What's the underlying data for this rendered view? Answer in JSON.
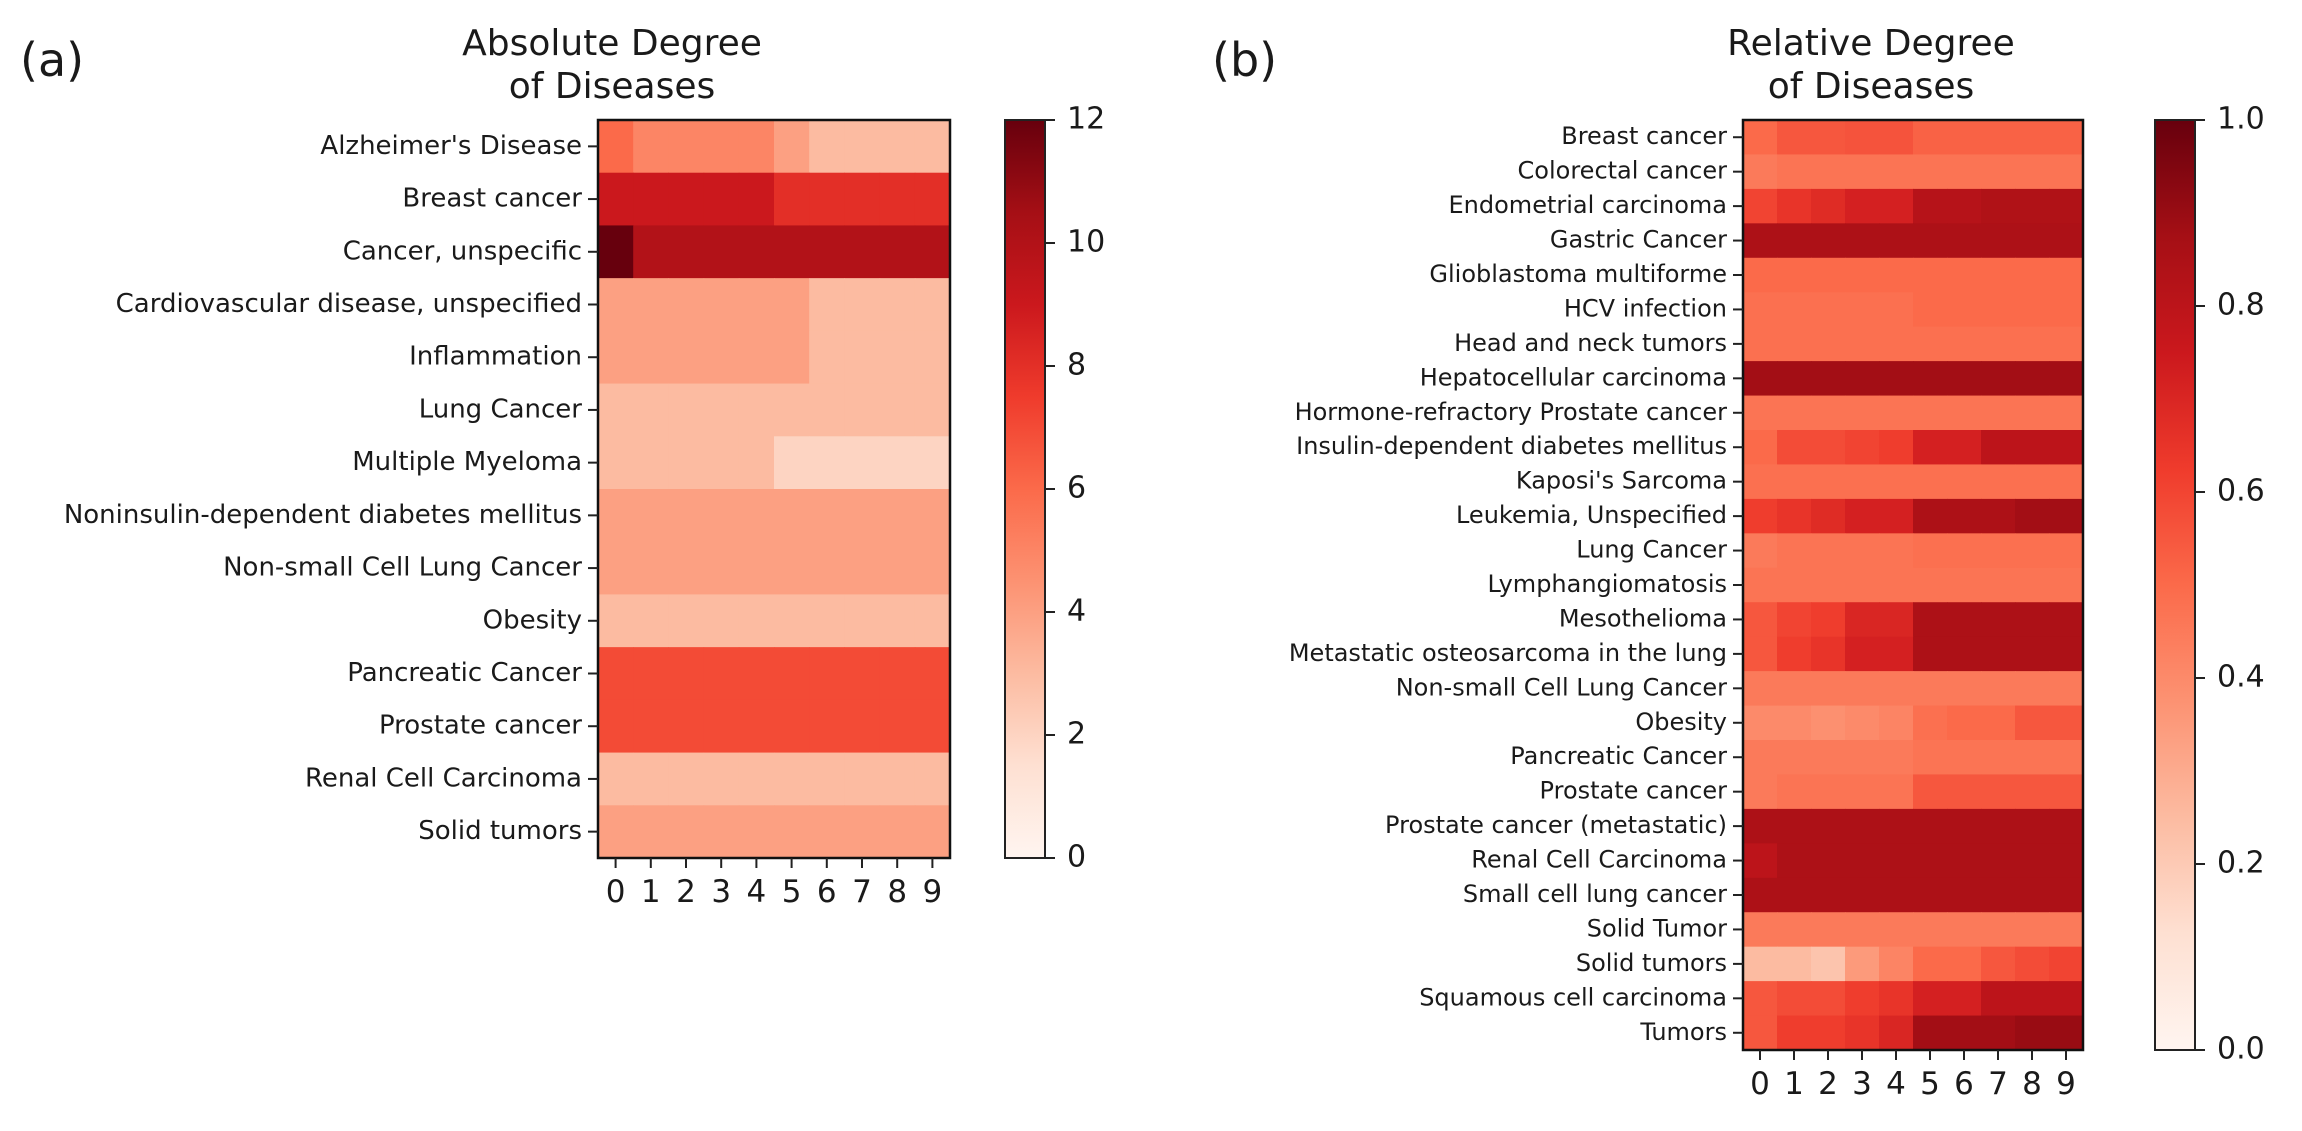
{
  "chart_data": [
    {
      "type": "heatmap",
      "panel_label": "(a)",
      "title_lines": [
        "Absolute Degree",
        "of Diseases"
      ],
      "columns": [
        "0",
        "1",
        "2",
        "3",
        "4",
        "5",
        "6",
        "7",
        "8",
        "9"
      ],
      "rows": [
        "Alzheimer's Disease",
        "Breast cancer",
        "Cancer, unspecific",
        "Cardiovascular disease, unspecified",
        "Inflammation",
        "Lung Cancer",
        "Multiple Myeloma",
        "Noninsulin-dependent diabetes mellitus",
        "Non-small Cell Lung Cancer",
        "Obesity",
        "Pancreatic Cancer",
        "Prostate cancer",
        "Renal Cell Carcinoma",
        "Solid tumors"
      ],
      "values": [
        [
          6,
          5,
          5,
          5,
          5,
          4,
          3,
          3,
          3,
          3
        ],
        [
          9,
          9,
          9,
          9,
          9,
          8,
          8,
          8,
          8,
          8
        ],
        [
          12,
          10,
          10,
          10,
          10,
          10,
          10,
          10,
          10,
          10
        ],
        [
          4,
          4,
          4,
          4,
          4,
          4,
          3,
          3,
          3,
          3
        ],
        [
          4,
          4,
          4,
          4,
          4,
          4,
          3,
          3,
          3,
          3
        ],
        [
          3,
          3,
          3,
          3,
          3,
          3,
          3,
          3,
          3,
          3
        ],
        [
          3,
          3,
          3,
          3,
          3,
          2,
          2,
          2,
          2,
          2
        ],
        [
          4,
          4,
          4,
          4,
          4,
          4,
          4,
          4,
          4,
          4
        ],
        [
          4,
          4,
          4,
          4,
          4,
          4,
          4,
          4,
          4,
          4
        ],
        [
          3,
          3,
          3,
          3,
          3,
          3,
          3,
          3,
          3,
          3
        ],
        [
          7,
          7,
          7,
          7,
          7,
          7,
          7,
          7,
          7,
          7
        ],
        [
          7,
          7,
          7,
          7,
          7,
          7,
          7,
          7,
          7,
          7
        ],
        [
          3,
          3,
          3,
          3,
          3,
          3,
          3,
          3,
          3,
          3
        ],
        [
          4,
          4,
          4,
          4,
          4,
          4,
          4,
          4,
          4,
          4
        ]
      ],
      "vmin": 0,
      "vmax": 12,
      "colorbar_ticks": [
        "0",
        "2",
        "4",
        "6",
        "8",
        "10",
        "12"
      ],
      "colormap": "Reds"
    },
    {
      "type": "heatmap",
      "panel_label": "(b)",
      "title_lines": [
        "Relative Degree",
        "of Diseases"
      ],
      "columns": [
        "0",
        "1",
        "2",
        "3",
        "4",
        "5",
        "6",
        "7",
        "8",
        "9"
      ],
      "rows": [
        "Breast cancer",
        "Colorectal cancer",
        "Endometrial carcinoma",
        "Gastric Cancer",
        "Glioblastoma multiforme",
        "HCV infection",
        "Head and neck tumors",
        "Hepatocellular carcinoma",
        "Hormone-refractory Prostate cancer",
        "Insulin-dependent diabetes mellitus",
        "Kaposi's Sarcoma",
        "Leukemia, Unspecified",
        "Lung Cancer",
        "Lymphangiomatosis",
        "Mesothelioma",
        "Metastatic osteosarcoma in the lung",
        "Non-small Cell Lung Cancer",
        "Obesity",
        "Pancreatic Cancer",
        "Prostate cancer",
        "Prostate cancer (metastatic)",
        "Renal Cell Carcinoma",
        "Small cell lung cancer",
        "Solid Tumor",
        "Solid tumors",
        "Squamous cell carcinoma",
        "Tumors"
      ],
      "values": [
        [
          0.5,
          0.55,
          0.55,
          0.56,
          0.56,
          0.52,
          0.52,
          0.52,
          0.52,
          0.52
        ],
        [
          0.45,
          0.47,
          0.47,
          0.47,
          0.47,
          0.47,
          0.47,
          0.47,
          0.47,
          0.47
        ],
        [
          0.6,
          0.65,
          0.68,
          0.72,
          0.72,
          0.82,
          0.82,
          0.84,
          0.84,
          0.84
        ],
        [
          0.85,
          0.85,
          0.85,
          0.85,
          0.85,
          0.85,
          0.85,
          0.85,
          0.85,
          0.85
        ],
        [
          0.5,
          0.5,
          0.5,
          0.5,
          0.5,
          0.5,
          0.5,
          0.5,
          0.5,
          0.5
        ],
        [
          0.48,
          0.48,
          0.48,
          0.48,
          0.48,
          0.5,
          0.5,
          0.5,
          0.5,
          0.5
        ],
        [
          0.48,
          0.48,
          0.48,
          0.48,
          0.48,
          0.48,
          0.48,
          0.48,
          0.48,
          0.48
        ],
        [
          0.88,
          0.88,
          0.88,
          0.88,
          0.88,
          0.88,
          0.88,
          0.88,
          0.88,
          0.88
        ],
        [
          0.47,
          0.47,
          0.47,
          0.47,
          0.47,
          0.47,
          0.47,
          0.47,
          0.47,
          0.47
        ],
        [
          0.5,
          0.58,
          0.58,
          0.6,
          0.62,
          0.72,
          0.72,
          0.8,
          0.8,
          0.8
        ],
        [
          0.48,
          0.48,
          0.48,
          0.48,
          0.48,
          0.48,
          0.48,
          0.48,
          0.48,
          0.48
        ],
        [
          0.62,
          0.65,
          0.68,
          0.72,
          0.72,
          0.85,
          0.85,
          0.85,
          0.88,
          0.88
        ],
        [
          0.45,
          0.47,
          0.47,
          0.47,
          0.47,
          0.48,
          0.48,
          0.48,
          0.48,
          0.48
        ],
        [
          0.47,
          0.47,
          0.47,
          0.47,
          0.47,
          0.47,
          0.47,
          0.47,
          0.47,
          0.47
        ],
        [
          0.55,
          0.6,
          0.62,
          0.7,
          0.7,
          0.85,
          0.85,
          0.85,
          0.85,
          0.85
        ],
        [
          0.55,
          0.62,
          0.65,
          0.72,
          0.72,
          0.85,
          0.85,
          0.85,
          0.85,
          0.85
        ],
        [
          0.45,
          0.45,
          0.45,
          0.45,
          0.45,
          0.45,
          0.45,
          0.45,
          0.45,
          0.45
        ],
        [
          0.4,
          0.4,
          0.38,
          0.4,
          0.42,
          0.48,
          0.5,
          0.5,
          0.55,
          0.55
        ],
        [
          0.45,
          0.45,
          0.45,
          0.45,
          0.45,
          0.47,
          0.47,
          0.47,
          0.47,
          0.47
        ],
        [
          0.45,
          0.47,
          0.47,
          0.47,
          0.47,
          0.55,
          0.55,
          0.55,
          0.55,
          0.55
        ],
        [
          0.85,
          0.85,
          0.85,
          0.85,
          0.85,
          0.85,
          0.85,
          0.85,
          0.85,
          0.85
        ],
        [
          0.8,
          0.85,
          0.85,
          0.85,
          0.85,
          0.85,
          0.85,
          0.85,
          0.85,
          0.85
        ],
        [
          0.85,
          0.85,
          0.85,
          0.85,
          0.85,
          0.85,
          0.85,
          0.85,
          0.85,
          0.85
        ],
        [
          0.45,
          0.45,
          0.45,
          0.45,
          0.45,
          0.45,
          0.45,
          0.45,
          0.45,
          0.45
        ],
        [
          0.25,
          0.25,
          0.22,
          0.35,
          0.42,
          0.5,
          0.5,
          0.55,
          0.58,
          0.6
        ],
        [
          0.55,
          0.58,
          0.58,
          0.62,
          0.65,
          0.72,
          0.72,
          0.8,
          0.8,
          0.8
        ],
        [
          0.55,
          0.62,
          0.62,
          0.65,
          0.7,
          0.88,
          0.88,
          0.88,
          0.9,
          0.9
        ]
      ],
      "vmin": 0.0,
      "vmax": 1.0,
      "colorbar_ticks": [
        "0.0",
        "0.2",
        "0.4",
        "0.6",
        "0.8",
        "1.0"
      ],
      "colormap": "Reds"
    }
  ]
}
